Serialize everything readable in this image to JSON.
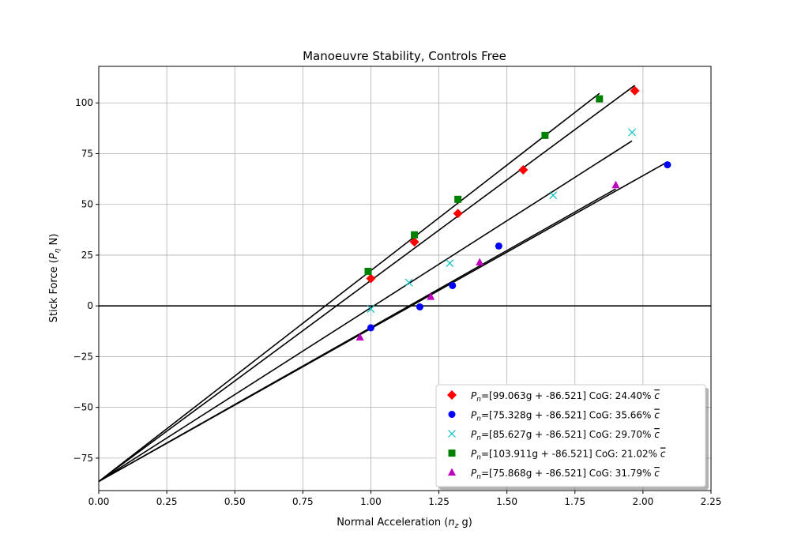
{
  "chart_data": {
    "type": "scatter",
    "title": "Manoeuvre Stability, Controls Free",
    "xlabel_main": "Normal Acceleration (",
    "xlabel_var": "n",
    "xlabel_sub": "z",
    "xlabel_tail": " g)",
    "ylabel_main": "Stick Force (",
    "ylabel_var": "P",
    "ylabel_sub": "η",
    "ylabel_tail": " N)",
    "xlim": [
      0,
      2.25
    ],
    "ylim": [
      -91,
      118
    ],
    "xticks": [
      0,
      0.25,
      0.5,
      0.75,
      1.0,
      1.25,
      1.5,
      1.75,
      2.0,
      2.25
    ],
    "xtick_labels": [
      "0.00",
      "0.25",
      "0.50",
      "0.75",
      "1.00",
      "1.25",
      "1.50",
      "1.75",
      "2.00",
      "2.25"
    ],
    "yticks": [
      -75,
      -50,
      -25,
      0,
      25,
      50,
      75,
      100
    ],
    "ytick_labels": [
      "−75",
      "−50",
      "−25",
      "0",
      "25",
      "50",
      "75",
      "100"
    ],
    "grid": true,
    "zero_line": 0,
    "legend_position": "lower-right",
    "series": [
      {
        "name_var": "P",
        "name_sub": "n",
        "name_rest": "=[99.063g + -86.521]  CoG: 24.40% ",
        "name_cbar": "c",
        "marker": "diamond",
        "color": "#ff0000",
        "slope": 99.063,
        "intercept": -86.521,
        "line_x": [
          0,
          1.97
        ],
        "x": [
          1.0,
          1.16,
          1.32,
          1.56,
          1.97
        ],
        "y": [
          13.5,
          31.5,
          45.5,
          67,
          106
        ]
      },
      {
        "name_var": "P",
        "name_sub": "n",
        "name_rest": "=[75.328g + -86.521]  CoG: 35.66% ",
        "name_cbar": "c",
        "marker": "circle",
        "color": "#0000ff",
        "slope": 75.328,
        "intercept": -86.521,
        "line_x": [
          0,
          2.09
        ],
        "x": [
          1.0,
          1.18,
          1.3,
          1.47,
          2.09
        ],
        "y": [
          -10.8,
          -0.5,
          10,
          29.5,
          69.5
        ]
      },
      {
        "name_var": "P",
        "name_sub": "n",
        "name_rest": "=[85.627g + -86.521]  CoG: 29.70% ",
        "name_cbar": "c",
        "marker": "x",
        "color": "#00bfbf",
        "slope": 85.627,
        "intercept": -86.521,
        "line_x": [
          0,
          1.96
        ],
        "x": [
          1.0,
          1.14,
          1.29,
          1.67,
          1.96
        ],
        "y": [
          -1.5,
          11.5,
          21,
          54.5,
          85.5
        ]
      },
      {
        "name_var": "P",
        "name_sub": "n",
        "name_rest": "=[103.911g + -86.521]  CoG: 21.02% ",
        "name_cbar": "c",
        "marker": "square",
        "color": "#008000",
        "slope": 103.911,
        "intercept": -86.521,
        "line_x": [
          0,
          1.84
        ],
        "x": [
          0.99,
          1.16,
          1.32,
          1.64,
          1.84
        ],
        "y": [
          17,
          35,
          52.5,
          84,
          102
        ]
      },
      {
        "name_var": "P",
        "name_sub": "n",
        "name_rest": "=[75.868g + -86.521]  CoG: 31.79% ",
        "name_cbar": "c",
        "marker": "triangle",
        "color": "#bf00bf",
        "slope": 75.868,
        "intercept": -86.521,
        "line_x": [
          0,
          1.9
        ],
        "x": [
          0.96,
          1.22,
          1.4,
          1.9
        ],
        "y": [
          -15.5,
          4.5,
          21.5,
          59.5
        ]
      }
    ]
  }
}
